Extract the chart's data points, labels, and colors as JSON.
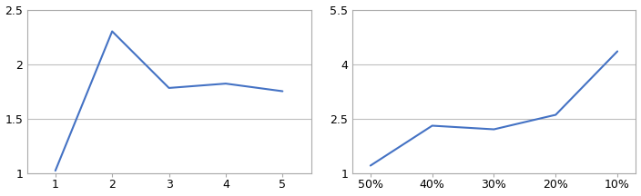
{
  "left": {
    "x": [
      1,
      2,
      3,
      4,
      5
    ],
    "y": [
      1.02,
      2.3,
      1.78,
      1.82,
      1.75
    ],
    "xlim": [
      0.5,
      5.5
    ],
    "ylim": [
      1.0,
      2.5
    ],
    "yticks": [
      1.0,
      1.5,
      2.0,
      2.5
    ],
    "ytick_labels": [
      "1",
      "1.5",
      "2",
      "2.5"
    ],
    "xticks": [
      1,
      2,
      3,
      4,
      5
    ],
    "xtick_labels": [
      "1",
      "2",
      "3",
      "4",
      "5"
    ]
  },
  "right": {
    "x": [
      0,
      1,
      2,
      3,
      4
    ],
    "y": [
      1.2,
      2.3,
      2.2,
      2.6,
      4.35
    ],
    "xlim": [
      -0.3,
      4.3
    ],
    "ylim": [
      1.0,
      5.5
    ],
    "yticks": [
      1.0,
      2.5,
      4.0,
      5.5
    ],
    "ytick_labels": [
      "1",
      "2.5",
      "4",
      "5.5"
    ],
    "xticks": [
      0,
      1,
      2,
      3,
      4
    ],
    "xtick_labels": [
      "50%",
      "40%",
      "30%",
      "20%",
      "10%"
    ]
  },
  "line_color": "#4472C4",
  "line_width": 1.5,
  "grid_color": "#BEBEBE",
  "plot_bg": "#FFFFFF",
  "fig_bg": "#FFFFFF",
  "spine_color": "#AAAAAA",
  "tick_fontsize": 9
}
